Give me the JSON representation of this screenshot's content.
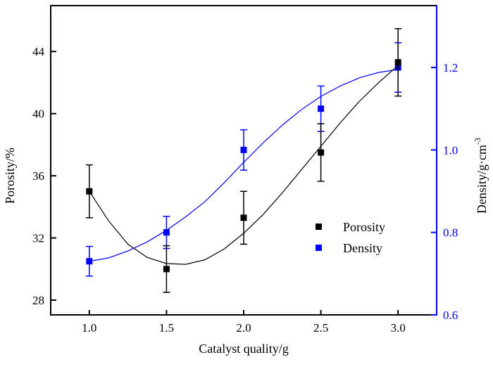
{
  "chart_data": {
    "type": "scatter",
    "title": "",
    "xlabel": "Catalyst quality/g",
    "ylabel_left": "Porosity/%",
    "ylabel_right": "Density/g·cm",
    "ylabel_right_superscript": "-3",
    "xlim": [
      0.75,
      3.25
    ],
    "ylim_left": [
      27.05,
      46.95
    ],
    "ylim_right": [
      0.6,
      1.35
    ],
    "x_ticks": [
      1.0,
      1.5,
      2.0,
      2.5,
      3.0
    ],
    "x_tick_labels": [
      "1.0",
      "1.5",
      "2.0",
      "2.5",
      "3.0"
    ],
    "y_left_ticks": [
      28,
      32,
      36,
      40,
      44
    ],
    "y_left_tick_labels": [
      "28",
      "32",
      "36",
      "40",
      "44"
    ],
    "y_right_ticks": [
      0.6,
      0.8,
      1.0,
      1.2
    ],
    "y_right_tick_labels": [
      "0.6",
      "0.8",
      "1.0",
      "1.2"
    ],
    "grid": false,
    "legend_position": "center-right",
    "series": [
      {
        "name": "Porosity",
        "axis": "left",
        "color": "#000000",
        "x": [
          1.0,
          1.5,
          2.0,
          2.5,
          3.0
        ],
        "y": [
          35.0,
          30.0,
          33.3,
          37.5,
          43.3
        ],
        "error": [
          1.7,
          1.5,
          1.7,
          1.85,
          2.17
        ],
        "fit_x": [
          1.0,
          1.125,
          1.25,
          1.375,
          1.5,
          1.625,
          1.75,
          1.875,
          2.0,
          2.125,
          2.25,
          2.375,
          2.5,
          2.625,
          2.75,
          2.875,
          3.0
        ],
        "fit_y": [
          35.0,
          33.1,
          31.6,
          30.75,
          30.35,
          30.3,
          30.6,
          31.3,
          32.3,
          33.5,
          34.9,
          36.4,
          37.9,
          39.4,
          40.8,
          42.0,
          43.1
        ]
      },
      {
        "name": "Density",
        "axis": "right",
        "color": "#0000ff",
        "x": [
          1.0,
          1.5,
          2.0,
          2.5,
          3.0
        ],
        "y": [
          0.73,
          0.8,
          1.0,
          1.1,
          1.2
        ],
        "error": [
          0.036,
          0.039,
          0.049,
          0.055,
          0.06
        ],
        "fit_x": [
          1.0,
          1.125,
          1.25,
          1.375,
          1.5,
          1.625,
          1.75,
          1.875,
          2.0,
          2.125,
          2.25,
          2.375,
          2.5,
          2.625,
          2.75,
          2.875,
          3.0
        ],
        "fit_y": [
          0.73,
          0.738,
          0.755,
          0.777,
          0.805,
          0.838,
          0.875,
          0.921,
          0.97,
          1.017,
          1.06,
          1.098,
          1.13,
          1.155,
          1.175,
          1.188,
          1.195
        ]
      }
    ]
  }
}
